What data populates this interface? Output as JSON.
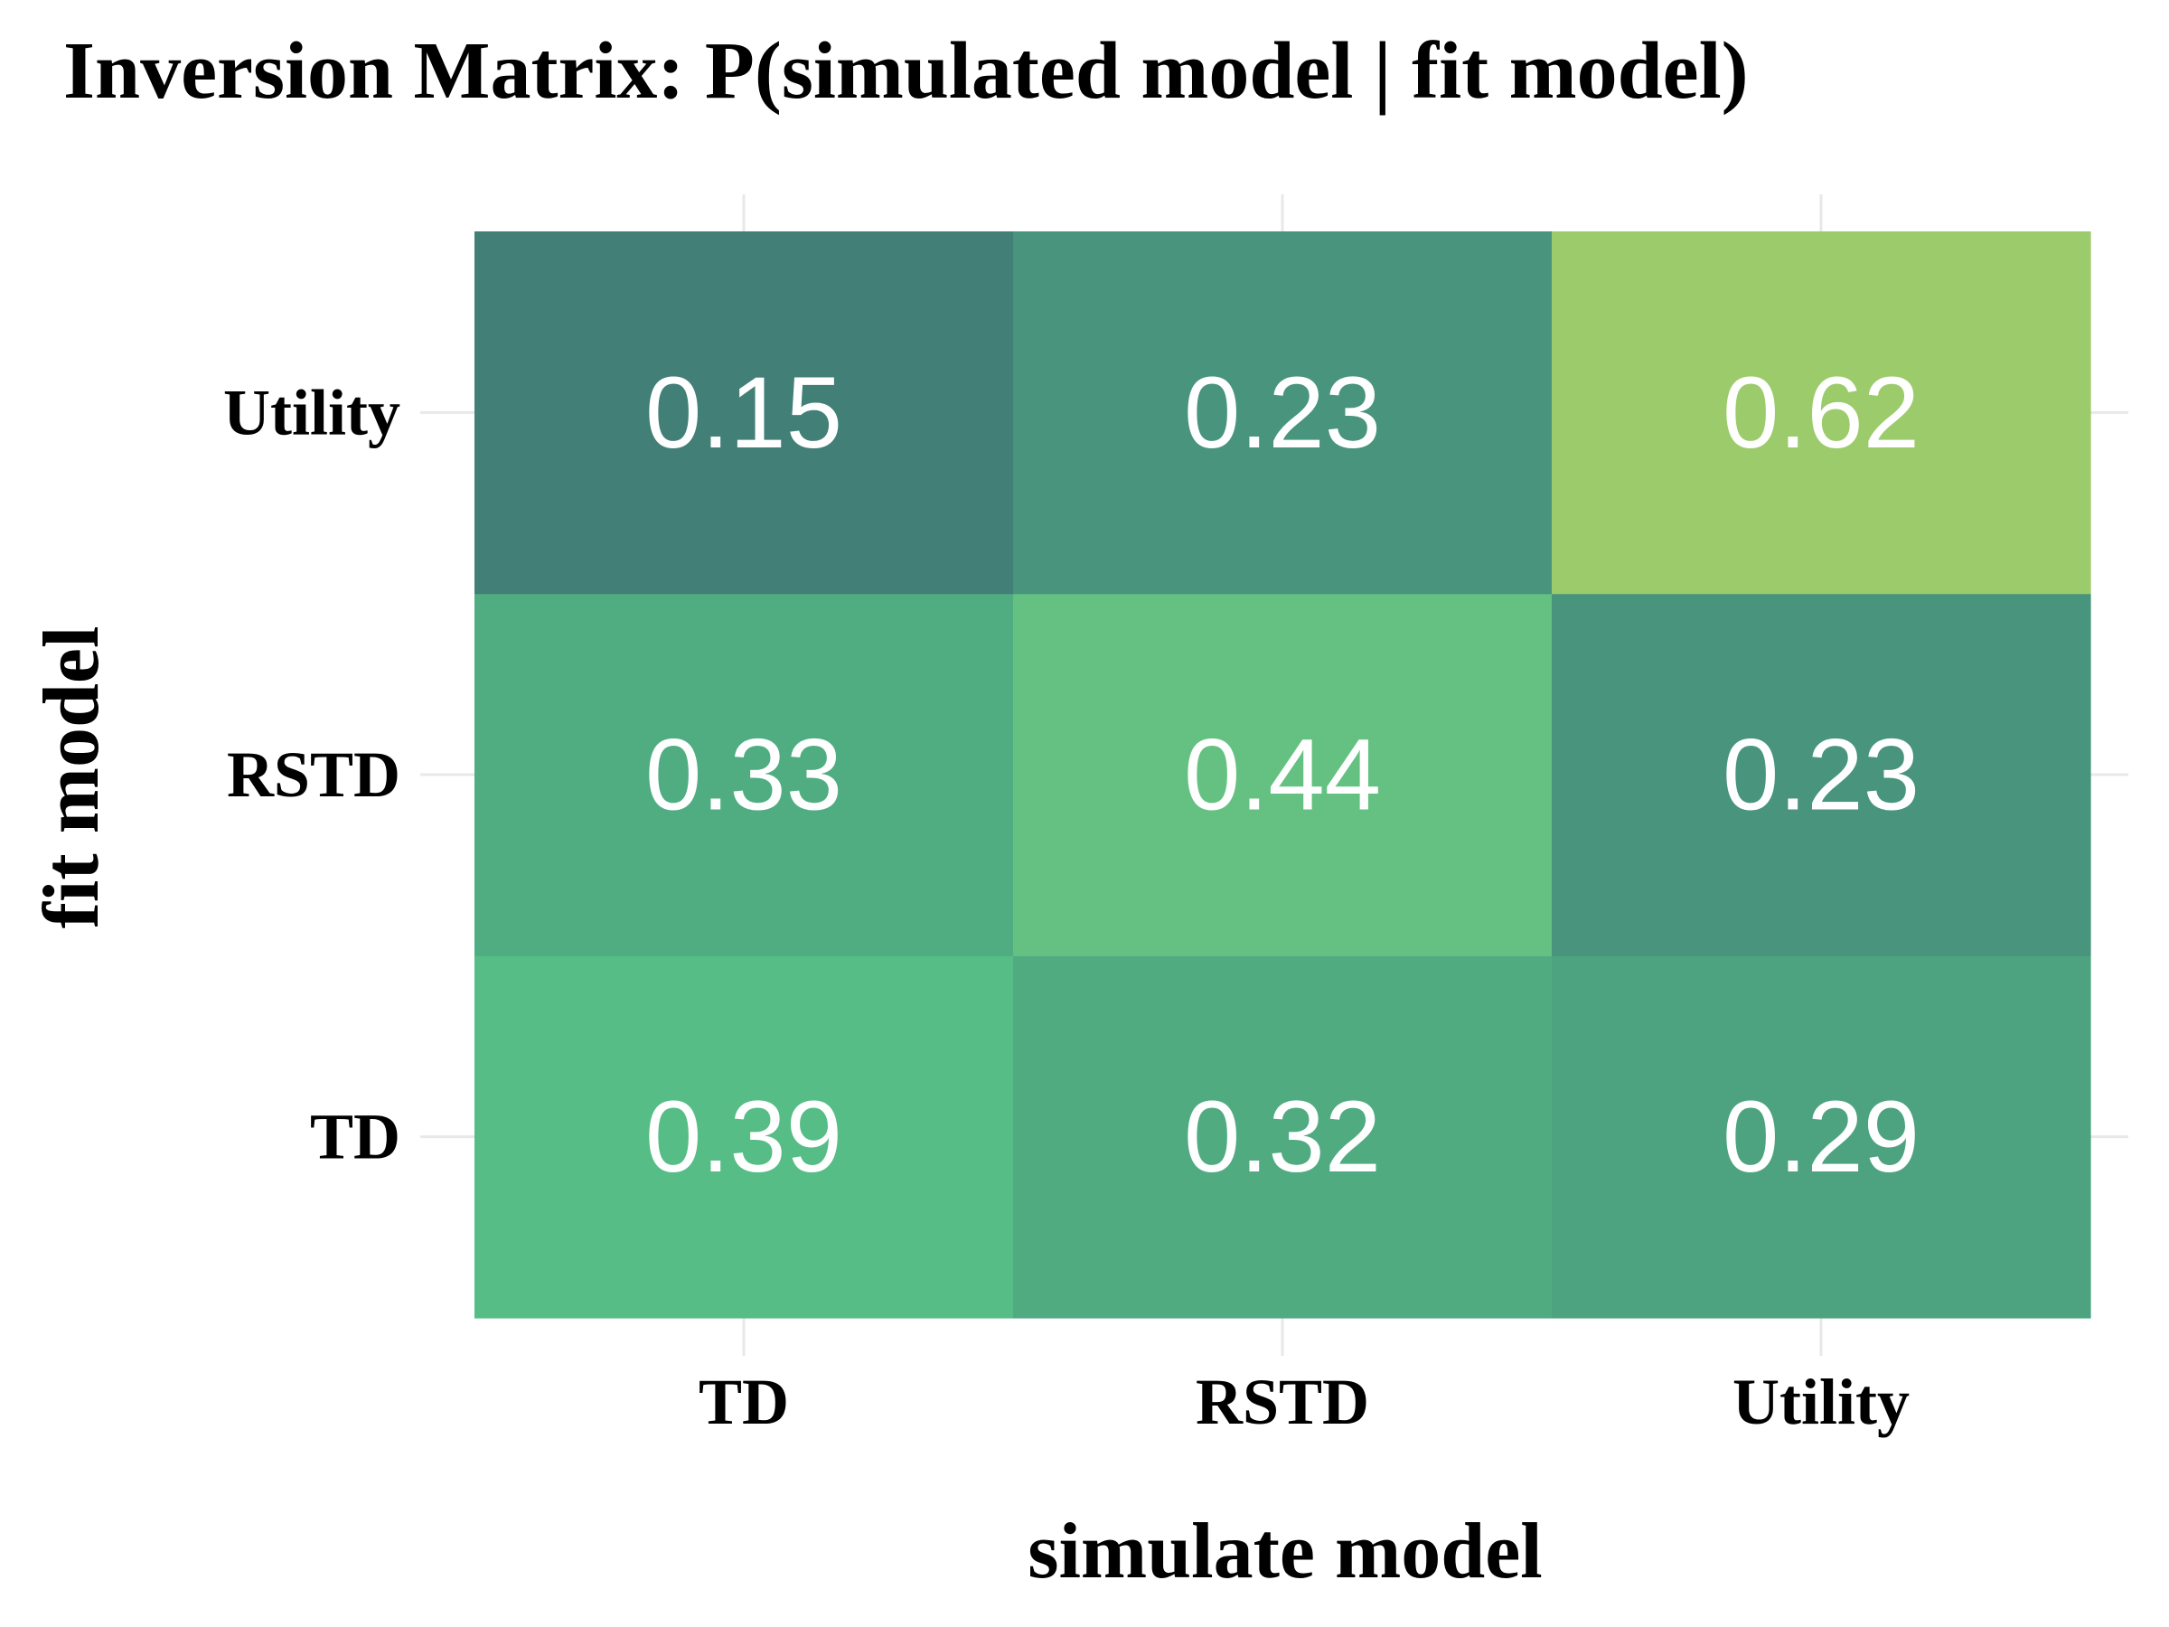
{
  "chart_data": {
    "type": "heatmap",
    "title": "Inversion Matrix: P(simulated model | fit model)",
    "xlabel": "simulate model",
    "ylabel": "fit model",
    "x_categories": [
      "TD",
      "RSTD",
      "Utility"
    ],
    "y_categories": [
      "TD",
      "RSTD",
      "Utility"
    ],
    "values": [
      [
        0.39,
        0.32,
        0.29
      ],
      [
        0.33,
        0.44,
        0.23
      ],
      [
        0.15,
        0.23,
        0.62
      ]
    ],
    "value_labels": [
      [
        "0.39",
        "0.32",
        "0.29"
      ],
      [
        "0.33",
        "0.44",
        "0.23"
      ],
      [
        "0.15",
        "0.23",
        "0.62"
      ]
    ],
    "color_scale": {
      "low": "#417f77",
      "mid": "#56be86",
      "high": "#9ccb6c"
    },
    "grid": true,
    "legend": "none"
  }
}
